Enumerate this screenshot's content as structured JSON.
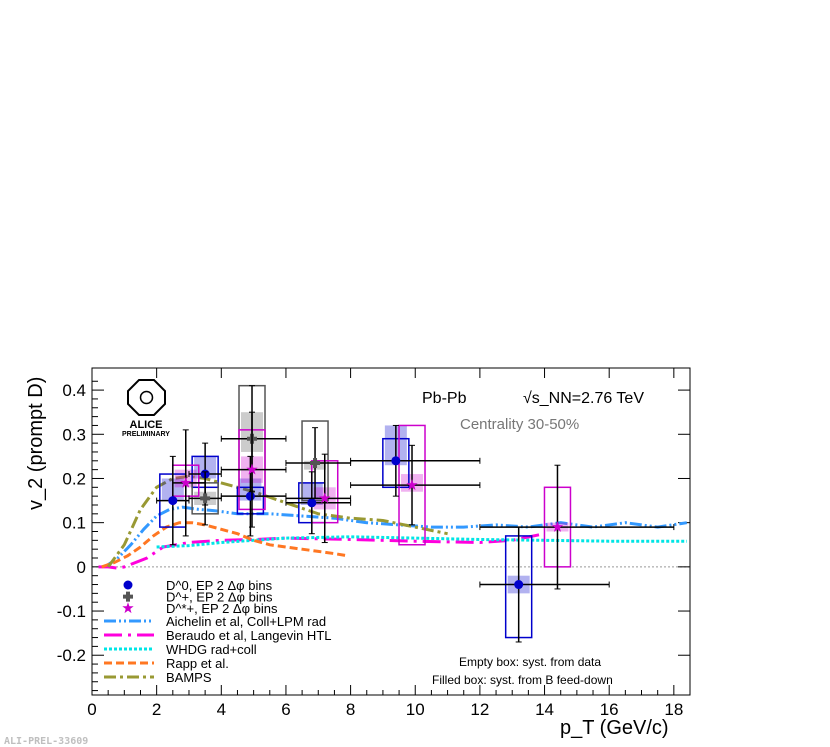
{
  "chart_data": {
    "type": "scatter",
    "title": "",
    "xlabel": "p_T (GeV/c)",
    "ylabel": "v_2 (prompt D)",
    "xlim": [
      0,
      18.5
    ],
    "ylim": [
      -0.29,
      0.45
    ],
    "x_ticks": [
      "0",
      "2",
      "4",
      "6",
      "8",
      "10",
      "12",
      "14",
      "16",
      "18"
    ],
    "y_ticks": [
      "-0.2",
      "-0.1",
      "0",
      "0.1",
      "0.2",
      "0.3",
      "0.4"
    ],
    "system_label": "Pb-Pb",
    "energy_label": "√s_NN=2.76 TeV",
    "centrality_label": "Centrality 30-50%",
    "logo_text": [
      "ALICE",
      "PRELIMINARY"
    ],
    "footer_label": "ALI-PREL-33609",
    "notes": [
      "Empty box: syst. from data",
      "Filled box: syst. from B feed-down"
    ],
    "colors": {
      "D0": "#0000cc",
      "Dplus": "#555555",
      "Dstar": "#cc00cc",
      "aichelin": "#3399ff",
      "beraudo": "#ff00dd",
      "whdg": "#00e5e5",
      "rapp": "#ff7722",
      "bamps": "#999933"
    },
    "series": [
      {
        "name": "D^0, EP 2 Δφ bins",
        "marker": "circle",
        "color": "#0000cc",
        "points": [
          {
            "x": 2.5,
            "xerr": [
              0.5,
              0.5
            ],
            "y": 0.15,
            "yerr": [
              0.1,
              0.1
            ],
            "sys_data": [
              0.09,
              0.21
            ],
            "sys_feed": [
              0.15,
              0.2
            ]
          },
          {
            "x": 3.5,
            "xerr": [
              0.5,
              0.5
            ],
            "y": 0.21,
            "yerr": [
              0.07,
              0.07
            ],
            "sys_data": [
              0.18,
              0.25
            ],
            "sys_feed": [
              0.2,
              0.25
            ]
          },
          {
            "x": 4.9,
            "xerr": [
              0.9,
              1.1
            ],
            "y": 0.16,
            "yerr": [
              0.09,
              0.09
            ],
            "sys_data": [
              0.12,
              0.18
            ],
            "sys_feed": [
              0.15,
              0.2
            ]
          },
          {
            "x": 6.8,
            "xerr": [
              0.8,
              1.2
            ],
            "y": 0.145,
            "yerr": [
              0.07,
              0.07
            ],
            "sys_data": [
              0.1,
              0.19
            ],
            "sys_feed": [
              0.14,
              0.19
            ]
          },
          {
            "x": 9.4,
            "xerr": [
              1.4,
              2.6
            ],
            "y": 0.24,
            "yerr": [
              0.08,
              0.08
            ],
            "sys_data": [
              0.18,
              0.29
            ],
            "sys_feed": [
              0.23,
              0.32
            ]
          },
          {
            "x": 13.2,
            "xerr": [
              1.2,
              2.8
            ],
            "y": -0.04,
            "yerr": [
              0.13,
              0.13
            ],
            "sys_data": [
              -0.16,
              0.07
            ],
            "sys_feed": [
              -0.06,
              -0.02
            ]
          }
        ]
      },
      {
        "name": "D^+, EP 2 Δφ bins",
        "marker": "cross",
        "color": "#555555",
        "points": [
          {
            "x": 3.5,
            "xerr": [
              0.5,
              0.5
            ],
            "y": 0.155,
            "yerr": [
              0.06,
              0.06
            ],
            "sys_data": [
              0.12,
              0.19
            ],
            "sys_feed": [
              0.14,
              0.17
            ]
          },
          {
            "x": 4.95,
            "xerr": [
              0.95,
              1.05
            ],
            "y": 0.29,
            "yerr": [
              0.12,
              0.12
            ],
            "sys_data": [
              0.16,
              0.41
            ],
            "sys_feed": [
              0.26,
              0.35
            ]
          },
          {
            "x": 6.9,
            "xerr": [
              0.9,
              1.1
            ],
            "y": 0.235,
            "yerr": [
              0.08,
              0.08
            ],
            "sys_data": [
              0.15,
              0.33
            ],
            "sys_feed": [
              0.22,
              0.24
            ]
          }
        ]
      },
      {
        "name": "D^*+, EP 2 Δφ bins",
        "marker": "star",
        "color": "#cc00cc",
        "points": [
          {
            "x": 2.9,
            "xerr": [
              0.4,
              0.6
            ],
            "y": 0.19,
            "yerr": [
              0.12,
              0.12
            ],
            "sys_data": [
              0.16,
              0.23
            ],
            "sys_feed": [
              0.18,
              0.22
            ]
          },
          {
            "x": 4.95,
            "xerr": [
              0.95,
              1.05
            ],
            "y": 0.22,
            "yerr": [
              0.13,
              0.13
            ],
            "sys_data": [
              0.13,
              0.31
            ],
            "sys_feed": [
              0.19,
              0.25
            ]
          },
          {
            "x": 7.2,
            "xerr": [
              1.2,
              0.8
            ],
            "y": 0.155,
            "yerr": [
              0.1,
              0.1
            ],
            "sys_data": [
              0.1,
              0.24
            ],
            "sys_feed": [
              0.13,
              0.18
            ]
          },
          {
            "x": 9.9,
            "xerr": [
              1.9,
              2.1
            ],
            "y": 0.185,
            "yerr": [
              0.09,
              0.09
            ],
            "sys_data": [
              0.05,
              0.32
            ],
            "sys_feed": [
              0.17,
              0.21
            ]
          },
          {
            "x": 14.4,
            "xerr": [
              2.4,
              3.6
            ],
            "y": 0.09,
            "yerr": [
              0.14,
              0.14
            ],
            "sys_data": [
              0.0,
              0.18
            ],
            "sys_feed": [
              0.08,
              0.1
            ]
          }
        ]
      }
    ],
    "models": [
      {
        "name": "Aichelin et al, Coll+LPM rad",
        "color": "#3399ff",
        "dash": "12,3,2,3,2,3",
        "x": [
          0.4,
          0.8,
          1.2,
          1.6,
          2.0,
          2.4,
          2.8,
          3.3,
          3.8,
          4.5,
          5.5,
          6.5,
          7.5,
          8.5,
          9.5,
          10.5,
          11.5,
          12.5,
          13.5,
          14.5,
          15.5,
          16.5,
          17.5,
          18.4
        ],
        "y": [
          0.0,
          0.02,
          0.05,
          0.085,
          0.115,
          0.13,
          0.135,
          0.13,
          0.127,
          0.12,
          0.12,
          0.115,
          0.11,
          0.1,
          0.095,
          0.09,
          0.09,
          0.095,
          0.09,
          0.1,
          0.09,
          0.1,
          0.09,
          0.1
        ]
      },
      {
        "name": "Beraudo et al, Langevin HTL",
        "color": "#ff00dd",
        "dash": "18,6,3,6",
        "x": [
          0.2,
          0.5,
          0.8,
          1.0,
          1.7,
          2.2,
          3.0,
          4.0,
          5.0,
          6.0,
          8.0,
          10.0,
          12.0,
          13.0,
          14.0
        ],
        "y": [
          0.0,
          0.0,
          -0.003,
          0.0,
          0.02,
          0.045,
          0.055,
          0.06,
          0.062,
          0.065,
          0.062,
          0.058,
          0.055,
          0.06,
          0.075
        ]
      },
      {
        "name": "WHDG rad+coll",
        "color": "#00e5e5",
        "dash": "3,2",
        "x": [
          2.0,
          3.0,
          4.0,
          5.0,
          6.0,
          8.0,
          10.0,
          12.0,
          14.0,
          16.0,
          18.4
        ],
        "y": [
          0.045,
          0.048,
          0.055,
          0.06,
          0.065,
          0.068,
          0.065,
          0.062,
          0.06,
          0.058,
          0.058
        ]
      },
      {
        "name": "Rapp et al.",
        "color": "#ff7722",
        "dash": "8,4",
        "x": [
          0.3,
          0.7,
          1.1,
          1.5,
          1.9,
          2.3,
          2.7,
          3.1,
          3.5,
          4.0,
          4.5,
          5.0,
          5.5,
          6.0,
          6.5,
          7.0,
          7.5,
          7.9
        ],
        "y": [
          0.0,
          0.01,
          0.025,
          0.045,
          0.07,
          0.09,
          0.1,
          0.1,
          0.095,
          0.085,
          0.075,
          0.06,
          0.05,
          0.045,
          0.04,
          0.035,
          0.03,
          0.025
        ]
      },
      {
        "name": "BAMPS",
        "color": "#999933",
        "dash": "12,4,3,4",
        "x": [
          0.5,
          1.0,
          1.5,
          2.0,
          2.5,
          3.0,
          3.5,
          4.0,
          5.0,
          6.0,
          7.0,
          8.0,
          9.0,
          10.0,
          11.0
        ],
        "y": [
          0.0,
          0.05,
          0.13,
          0.18,
          0.2,
          0.205,
          0.2,
          0.19,
          0.17,
          0.145,
          0.12,
          0.11,
          0.105,
          0.09,
          0.075
        ]
      }
    ],
    "grid": false,
    "legend_position": "bottom-left"
  }
}
